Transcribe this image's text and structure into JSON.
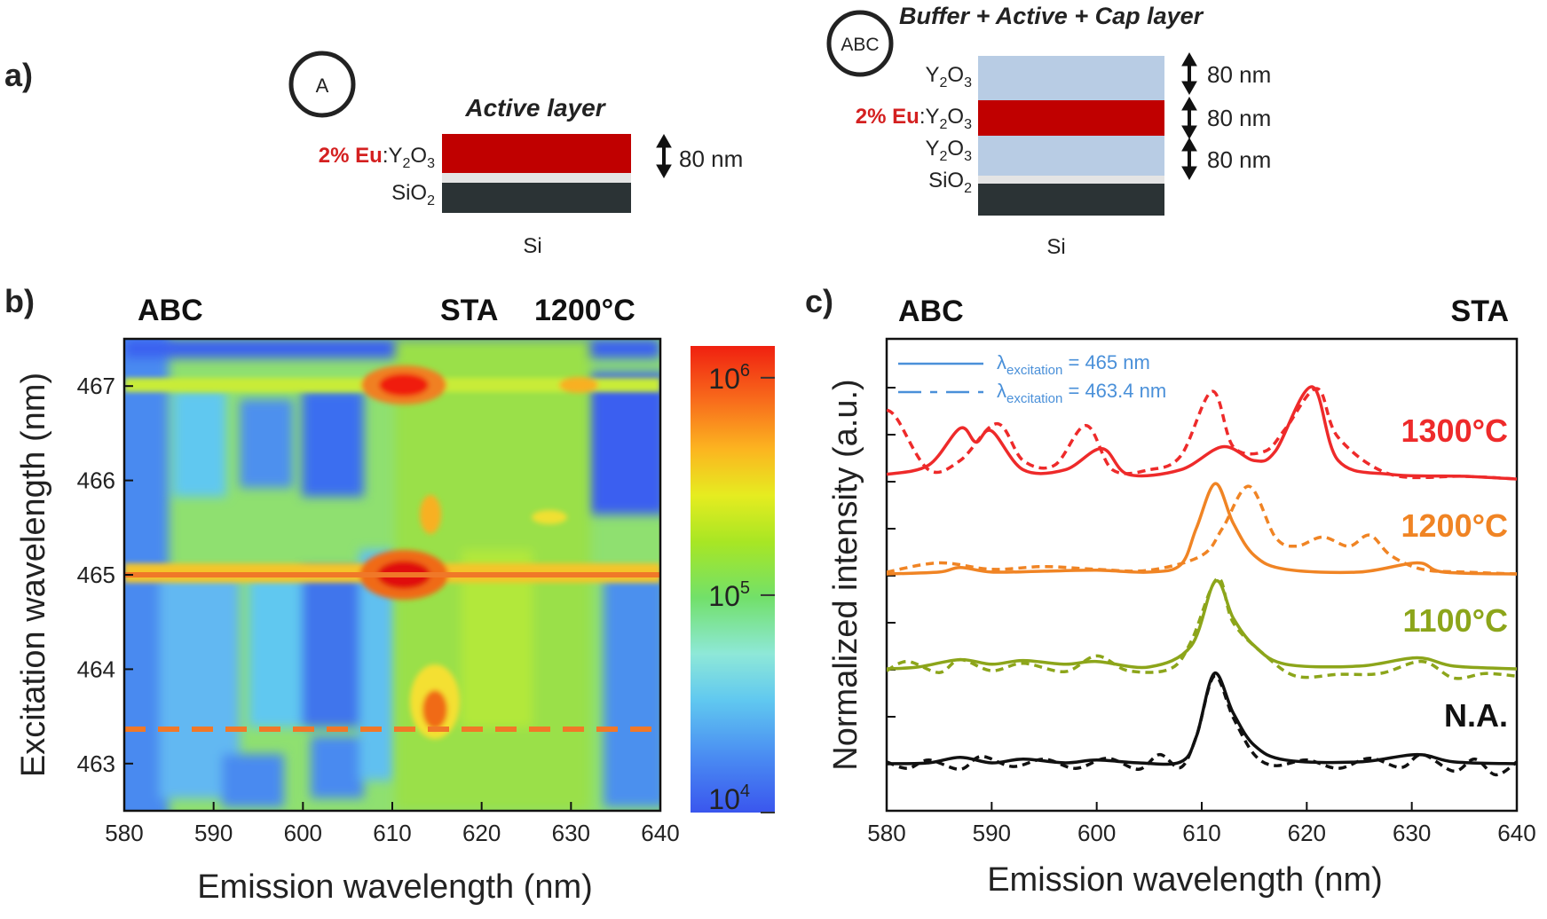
{
  "panel_a": {
    "label": "a)",
    "sample_a": {
      "badge": "A",
      "title": "Active layer",
      "active_prefix": "2% Eu",
      "active_suffix": ":Y",
      "sub2": "2",
      "o": "O",
      "sub3": "3",
      "sio_base": "SiO",
      "sio_sub": "2",
      "thickness": "80 nm",
      "substrate": "Si",
      "colors": {
        "active": "#c00000",
        "substrate": "#2b3335",
        "buffer": "#e4e4e4"
      }
    },
    "sample_abc": {
      "badge": "ABC",
      "title": "Buffer + Active + Cap layer",
      "cap_base": "Y",
      "active_prefix": "2% Eu",
      "active_suffix": ":Y",
      "sub2": "2",
      "o": "O",
      "sub3": "3",
      "sio_base": "SiO",
      "sio_sub": "2",
      "thickness_1": "80 nm",
      "thickness_2": "80 nm",
      "thickness_3": "80 nm",
      "substrate": "Si",
      "colors": {
        "cap": "#b8cce4",
        "active": "#c00000",
        "substrate": "#2b3335"
      }
    }
  },
  "panel_b": {
    "label": "b)",
    "header_left": "ABC",
    "header_mid": "STA",
    "header_right": "1200°C"
  },
  "panel_c": {
    "label": "c)",
    "header_left": "ABC",
    "header_right": "STA",
    "legend_solid_lambda": "λ",
    "legend_solid_sub": "excitation",
    "legend_solid_value": " = 465 nm",
    "legend_dash_lambda": "λ",
    "legend_dash_sub": "excitation",
    "legend_dash_value": " = 463.4 nm",
    "legend_color": "#4a90d9"
  },
  "chart_data": [
    {
      "type": "heatmap",
      "xlabel": "Emission  wavelength (nm)",
      "ylabel": "Excitation  wavelength (nm)",
      "xlim": [
        580,
        640
      ],
      "ylim": [
        462.5,
        467.5
      ],
      "xticks": [
        580,
        590,
        600,
        610,
        620,
        630,
        640
      ],
      "yticks": [
        463,
        464,
        465,
        466,
        467
      ],
      "colorbar": {
        "scale": "log",
        "min": 10000,
        "max": 1400000,
        "ticks": [
          {
            "base": "10",
            "exp": "4"
          },
          {
            "base": "10",
            "exp": "5"
          },
          {
            "base": "10",
            "exp": "6"
          }
        ]
      },
      "hot_spots": [
        {
          "x": 611,
          "y": 467.0,
          "z": 1000000
        },
        {
          "x": 611,
          "y": 465.0,
          "z": 1300000
        },
        {
          "x": 614,
          "y": 463.4,
          "z": 900000
        },
        {
          "x": 614,
          "y": 465.7,
          "z": 300000
        },
        {
          "x": 630,
          "y": 465.0,
          "z": 200000
        },
        {
          "x": 630,
          "y": 467.0,
          "z": 150000
        }
      ],
      "cut_lines": [
        {
          "y": 465.0,
          "style": "solid",
          "color": "#f07828"
        },
        {
          "y": 463.4,
          "style": "dashed",
          "color": "#f07828"
        }
      ]
    },
    {
      "type": "line",
      "xlabel": "Emission wavelength (nm)",
      "ylabel": "Normalized intensity (a.u.)",
      "xlim": [
        580,
        640
      ],
      "xticks": [
        580,
        590,
        600,
        610,
        620,
        630,
        640
      ],
      "series": [
        {
          "name": "1300°C",
          "color": "#ee2a2a",
          "offset": 3,
          "solid": {
            "x": [
              580,
              584,
              587,
              588.5,
              590,
              593,
              597,
              600.5,
              603,
              608,
              612,
              615,
              617,
              620.5,
              623,
              628,
              635,
              640
            ],
            "y": [
              0.05,
              0.15,
              0.55,
              0.4,
              0.52,
              0.1,
              0.1,
              0.33,
              0.05,
              0.1,
              0.35,
              0.2,
              0.3,
              1.0,
              0.2,
              0.05,
              0.03,
              0.0
            ]
          },
          "dashed": {
            "x": [
              580,
              581,
              584,
              587,
              590.5,
              593,
              596,
              599,
              601.5,
              605,
              608,
              611,
              613,
              616,
              618,
              621,
              623,
              628,
              635,
              640
            ],
            "y": [
              0.75,
              0.65,
              0.1,
              0.2,
              0.6,
              0.2,
              0.15,
              0.58,
              0.1,
              0.1,
              0.25,
              0.95,
              0.35,
              0.3,
              0.55,
              0.98,
              0.45,
              0.05,
              0.03,
              0.0
            ]
          }
        },
        {
          "name": "1200°C",
          "color": "#f08424",
          "offset": 2,
          "solid": {
            "x": [
              580,
              585,
              587,
              590,
              595,
              600,
              605,
              608,
              609.5,
              611.3,
              613,
              615,
              618,
              625,
              630.5,
              633,
              640
            ],
            "y": [
              0.0,
              0.02,
              0.07,
              0.02,
              0.03,
              0.04,
              0.02,
              0.1,
              0.5,
              0.98,
              0.55,
              0.2,
              0.05,
              0.02,
              0.12,
              0.02,
              0.0
            ]
          },
          "dashed": {
            "x": [
              580,
              585,
              590,
              595,
              600,
              605,
              610,
              612,
              614.5,
              617,
              619,
              621.5,
              624,
              626,
              628,
              631,
              635,
              640
            ],
            "y": [
              0.02,
              0.12,
              0.05,
              0.08,
              0.05,
              0.04,
              0.2,
              0.5,
              0.95,
              0.4,
              0.3,
              0.4,
              0.3,
              0.42,
              0.2,
              0.05,
              0.02,
              0.0
            ]
          }
        },
        {
          "name": "1100°C",
          "color": "#8ca51a",
          "offset": 1,
          "solid": {
            "x": [
              580,
              583,
              587,
              590,
              593,
              597,
              600,
              605,
              609,
              611.3,
              613,
              615,
              618,
              625,
              630.5,
              634,
              640
            ],
            "y": [
              0.0,
              0.02,
              0.1,
              0.05,
              0.09,
              0.05,
              0.08,
              0.02,
              0.25,
              0.95,
              0.55,
              0.25,
              0.05,
              0.03,
              0.12,
              0.03,
              0.0
            ]
          },
          "dashed": {
            "x": [
              580,
              582,
              585,
              587,
              590,
              593,
              597,
              600,
              603,
              607,
              609,
              611.5,
              613,
              616,
              619,
              623,
              627,
              631,
              634,
              637,
              640
            ],
            "y": [
              -0.02,
              0.08,
              -0.04,
              0.1,
              -0.02,
              0.06,
              -0.03,
              0.14,
              -0.02,
              0.0,
              0.3,
              0.98,
              0.5,
              0.15,
              -0.08,
              -0.06,
              -0.05,
              0.08,
              -0.1,
              -0.05,
              -0.08
            ]
          }
        },
        {
          "name": "N.A.",
          "color": "#111111",
          "offset": 0,
          "solid": {
            "x": [
              580,
              584,
              587,
              590,
              593,
              597,
              600,
              604,
              608,
              609.5,
              611.2,
              613,
              615,
              618,
              625,
              630.5,
              634,
              640
            ],
            "y": [
              0.0,
              0.01,
              0.07,
              0.01,
              0.05,
              0.01,
              0.04,
              0.01,
              0.02,
              0.3,
              0.98,
              0.55,
              0.2,
              0.04,
              0.02,
              0.1,
              0.02,
              0.0
            ]
          },
          "dashed": {
            "x": [
              580,
              582,
              584,
              587,
              589,
              592,
              595,
              598,
              601,
              604,
              606,
              608,
              609.5,
              611.2,
              613,
              615,
              617,
              620,
              623,
              626,
              629,
              631,
              634,
              636,
              638,
              640
            ],
            "y": [
              0.02,
              -0.05,
              0.04,
              -0.06,
              0.08,
              -0.03,
              0.05,
              -0.05,
              0.06,
              -0.06,
              0.1,
              -0.04,
              0.3,
              0.95,
              0.5,
              0.1,
              -0.02,
              0.04,
              -0.05,
              0.06,
              -0.04,
              0.1,
              -0.08,
              0.05,
              -0.12,
              0.02
            ]
          }
        }
      ]
    }
  ]
}
